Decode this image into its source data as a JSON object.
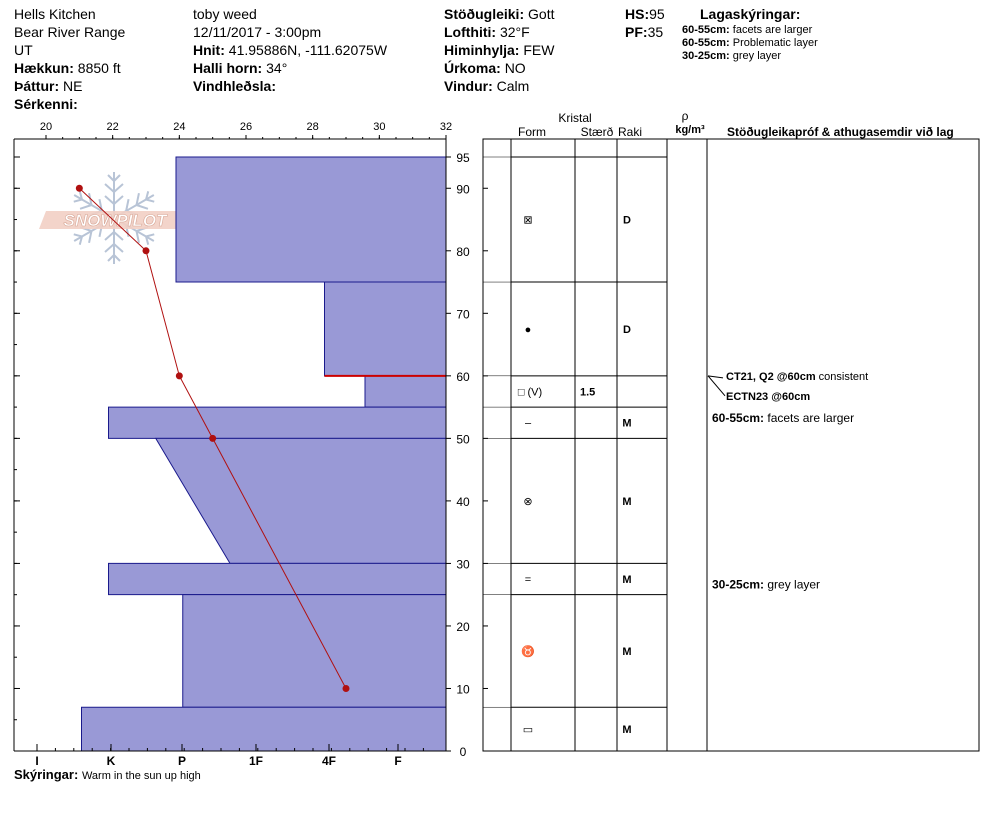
{
  "header": {
    "location": "Hells Kitchen",
    "range": "Bear River Range",
    "state": "UT",
    "elevation_label": "Hækkun:",
    "elevation": "8850 ft",
    "aspect_label": "Þáttur:",
    "aspect": "NE",
    "features_label": "Sérkenni:",
    "observer": "toby weed",
    "datetime": "12/11/2017 - 3:00pm",
    "coords_label": "Hnit:",
    "coords": "41.95886N, -111.62075W",
    "slope_label": "Halli horn:",
    "slope": "34°",
    "wind_loading_label": "Vindhleðsla:",
    "stability_label": "Stöðugleiki:",
    "stability": "Gott",
    "air_temp_label": "Lofthiti:",
    "air_temp": "32°F",
    "sky_label": "Himinhylja:",
    "sky": "FEW",
    "precip_label": "Úrkoma:",
    "precip": "NO",
    "wind_label": "Vindur:",
    "wind": "Calm",
    "hs_label": "HS:",
    "hs": "95",
    "pf_label": "PF:",
    "pf": "35",
    "legend_title": "Lagaskýringar:",
    "legend": [
      {
        "range": "60-55cm:",
        "text": "facets are larger"
      },
      {
        "range": "60-55cm:",
        "text": "Problematic layer"
      },
      {
        "range": "30-25cm:",
        "text": "grey layer"
      }
    ]
  },
  "chart_data": {
    "type": "snow-profile",
    "temp_axis": {
      "ticks": [
        "20",
        "22",
        "24",
        "26",
        "28",
        "30",
        "32"
      ],
      "range": [
        20,
        32
      ]
    },
    "height_axis": {
      "ticks": [
        "0",
        "10",
        "20",
        "30",
        "40",
        "50",
        "60",
        "70",
        "80",
        "90",
        "95"
      ],
      "range": [
        0,
        95
      ]
    },
    "hardness_axis": {
      "ticks": [
        "I",
        "K",
        "P",
        "1F",
        "4F",
        "F"
      ]
    },
    "temperature_profile": [
      {
        "height": 90,
        "temp": 21.0
      },
      {
        "height": 80,
        "temp": 23.0
      },
      {
        "height": 60,
        "temp": 24.0
      },
      {
        "height": 50,
        "temp": 25.0
      },
      {
        "height": 10,
        "temp": 29.0
      }
    ],
    "layers": [
      {
        "top": 95,
        "bottom": 75,
        "hardness_top": 4.0,
        "hardness_bottom": 4.0,
        "form": "⊠",
        "size": "",
        "moisture": "D"
      },
      {
        "top": 75,
        "bottom": 60,
        "hardness_top": 1.8,
        "hardness_bottom": 1.8,
        "form": "●",
        "size": "",
        "moisture": "D"
      },
      {
        "top": 60,
        "bottom": 55,
        "hardness_top": 1.2,
        "hardness_bottom": 1.2,
        "form": "□ (V)",
        "size": "1.5",
        "moisture": ""
      },
      {
        "top": 55,
        "bottom": 50,
        "hardness_top": 5.0,
        "hardness_bottom": 5.0,
        "form": "–",
        "size": "",
        "moisture": "M"
      },
      {
        "top": 50,
        "bottom": 30,
        "hardness_top": 4.3,
        "hardness_bottom": 3.2,
        "form": "⊗",
        "size": "",
        "moisture": "M"
      },
      {
        "top": 30,
        "bottom": 25,
        "hardness_top": 5.0,
        "hardness_bottom": 5.0,
        "form": "=",
        "size": "",
        "moisture": "M"
      },
      {
        "top": 25,
        "bottom": 7,
        "hardness_top": 3.9,
        "hardness_bottom": 3.9,
        "form": "♉",
        "size": "",
        "moisture": "M"
      },
      {
        "top": 7,
        "bottom": 0,
        "hardness_top": 5.4,
        "hardness_bottom": 5.4,
        "form": "▭",
        "size": "",
        "moisture": "M"
      }
    ],
    "problem_layer_height": 60,
    "colors": {
      "layer_fill": "#9999d6",
      "layer_stroke": "#1a1a8c",
      "temp_line": "#b01010",
      "problem_line": "#cc0000"
    }
  },
  "table": {
    "crystal_header": "Kristal",
    "form_header": "Form",
    "size_header": "Stærð",
    "moisture_header": "Raki",
    "density_symbol": "ρ",
    "density_unit": "kg/m³",
    "comments_header": "Stöðugleikapróf & athugasemdir við lag"
  },
  "tests": [
    {
      "label": "CT21, Q2 @60cm",
      "text": "consistent"
    },
    {
      "label": "ECTN23 @60cm",
      "text": ""
    }
  ],
  "comments": [
    {
      "range": "60-55cm:",
      "text": "facets are larger"
    },
    {
      "range": "30-25cm:",
      "text": "grey layer"
    }
  ],
  "footer": {
    "label": "Skýringar:",
    "text": "Warm in the sun up high"
  },
  "logo_text": "SNOWPILOT"
}
